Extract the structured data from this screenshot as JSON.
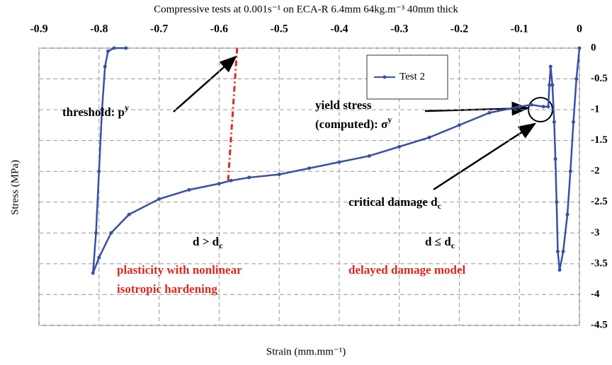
{
  "chart_data": {
    "type": "line",
    "title": "Compressive tests at 0.001s⁻¹ on ECA-R 6.4mm 64kg.m⁻³ 40mm thick",
    "x_label": "Strain (mm.mm⁻¹)",
    "y_label": "Stress (MPa)",
    "xlim": [
      -0.9,
      0
    ],
    "xticks": [
      -0.9,
      -0.8,
      -0.7,
      -0.6,
      -0.5,
      -0.4,
      -0.3,
      -0.2,
      -0.1,
      0
    ],
    "ylim": [
      -4.5,
      0
    ],
    "yticks": [
      0,
      -0.5,
      -1,
      -1.5,
      -2,
      -2.5,
      -3,
      -3.5,
      -4,
      -4.5
    ],
    "grid": true,
    "legend": "upper right",
    "series": [
      {
        "name": "Test 2",
        "color": "#3a4fa8",
        "x": [
          0,
          -0.005,
          -0.01,
          -0.015,
          -0.02,
          -0.027,
          -0.033,
          -0.036,
          -0.038,
          -0.04,
          -0.042,
          -0.045,
          -0.048,
          -0.05,
          -0.052,
          -0.06,
          -0.08,
          -0.1,
          -0.15,
          -0.2,
          -0.25,
          -0.3,
          -0.35,
          -0.4,
          -0.45,
          -0.5,
          -0.55,
          -0.58,
          -0.6,
          -0.65,
          -0.7,
          -0.75,
          -0.78,
          -0.8,
          -0.81,
          -0.805,
          -0.8,
          -0.795,
          -0.79,
          -0.785,
          -0.775,
          -0.755
        ],
        "values": [
          0,
          -0.5,
          -1.2,
          -2.0,
          -2.7,
          -3.3,
          -3.6,
          -3.3,
          -2.5,
          -1.8,
          -1.2,
          -0.6,
          -0.3,
          -0.6,
          -0.95,
          -0.95,
          -0.92,
          -0.95,
          -1.05,
          -1.25,
          -1.45,
          -1.6,
          -1.75,
          -1.85,
          -1.95,
          -2.05,
          -2.1,
          -2.15,
          -2.2,
          -2.3,
          -2.45,
          -2.7,
          -3.0,
          -3.4,
          -3.65,
          -3.0,
          -2.0,
          -1.0,
          -0.3,
          -0.05,
          0,
          0
        ]
      },
      {
        "color": "#e0261c",
        "dashed": true,
        "x": [
          -0.585,
          -0.57
        ],
        "values": [
          -2.15,
          0
        ]
      }
    ],
    "annotations": [
      {
        "text": "threshold: p",
        "sup": "y"
      },
      {
        "text": "yield stress"
      },
      {
        "text": "(computed): σ",
        "sup": "y"
      },
      {
        "text": "critical damage d",
        "sub": "c"
      },
      {
        "text": "d > d",
        "sub": "c"
      },
      {
        "text": "d ≤ d",
        "sub": "c"
      },
      {
        "text": "plasticity with nonlinear",
        "color": "#e0261c"
      },
      {
        "text": "isotropic hardening",
        "color": "#e0261c"
      },
      {
        "text": "delayed damage model",
        "color": "#e0261c"
      }
    ]
  }
}
